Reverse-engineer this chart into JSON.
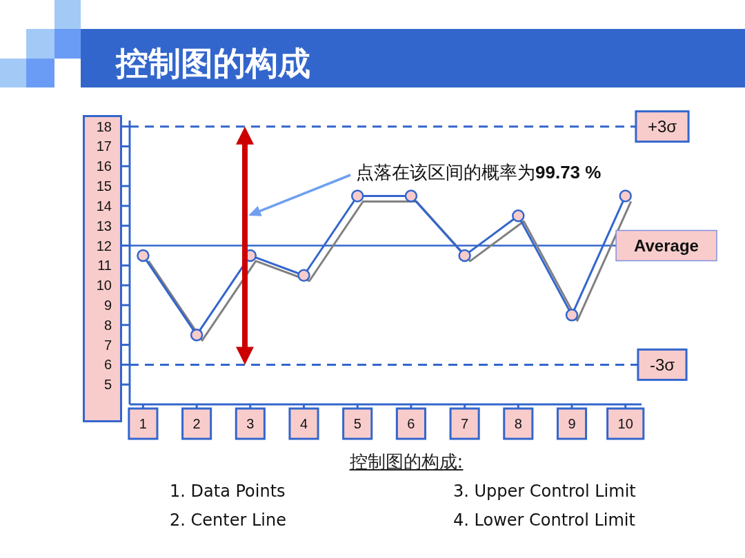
{
  "chart_data": {
    "type": "line",
    "title": "控制图的构成",
    "categories": [
      "1",
      "2",
      "3",
      "4",
      "5",
      "6",
      "7",
      "8",
      "9",
      "10"
    ],
    "series": [
      {
        "color": "#3366cc",
        "values": [
          11.5,
          7.5,
          11.5,
          10.5,
          14.5,
          14.5,
          11.5,
          13.5,
          8.5,
          14.5
        ]
      }
    ],
    "ylim": [
      4,
      18.3
    ],
    "yticks": [
      5,
      6,
      7,
      8,
      9,
      10,
      11,
      12,
      13,
      14,
      15,
      16,
      17,
      18
    ],
    "marker": "circle",
    "line_style": "solid",
    "ref_lines": [
      {
        "axis": "y",
        "value": 18,
        "label": "+3σ",
        "line_style": "dashed",
        "color": "#3366cc"
      },
      {
        "axis": "y",
        "value": 12,
        "label": "Average",
        "line_style": "solid",
        "color": "#3366cc"
      },
      {
        "axis": "y",
        "value": 6,
        "label": "-3σ",
        "line_style": "dashed",
        "color": "#3366cc"
      }
    ],
    "annotations": [
      "点落在该区间的概率为99.73 %",
      "控制图的构成:",
      "1. Data Points",
      "2. Center Line",
      "3. Upper Control Limit",
      "4. Lower Control Limit"
    ]
  }
}
